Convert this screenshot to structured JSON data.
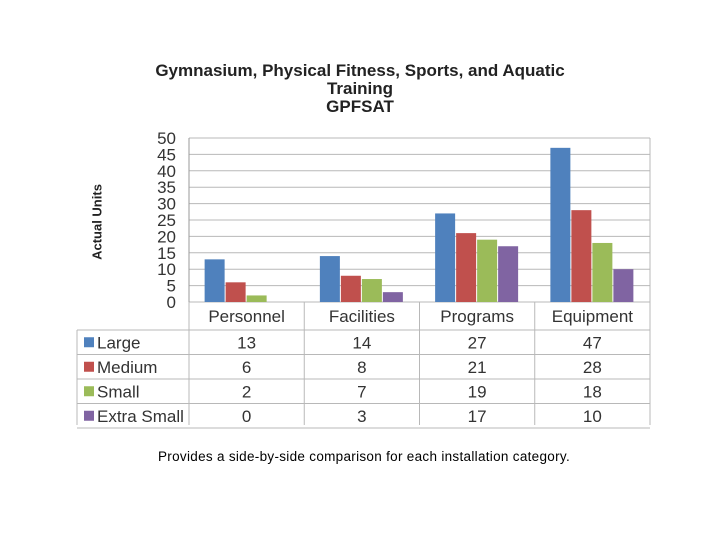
{
  "chart_data": {
    "type": "bar",
    "title_lines": [
      "Gymnasium, Physical Fitness, Sports, and Aquatic",
      "Training",
      "GPFSAT"
    ],
    "xlabel": "",
    "ylabel": "Actual Units",
    "ylim": [
      0,
      50
    ],
    "yticks": [
      "0",
      "5",
      "10",
      "15",
      "20",
      "25",
      "30",
      "35",
      "40",
      "45",
      "50"
    ],
    "categories": [
      "Personnel",
      "Facilities",
      "Programs",
      "Equipment"
    ],
    "series": [
      {
        "name": "Large",
        "color": "#4F81BD",
        "values": [
          13,
          14,
          27,
          47
        ]
      },
      {
        "name": "Medium",
        "color": "#C0504D",
        "values": [
          6,
          8,
          21,
          28
        ]
      },
      {
        "name": "Small",
        "color": "#9BBB59",
        "values": [
          2,
          7,
          19,
          18
        ]
      },
      {
        "name": "Extra Small",
        "color": "#8064A2",
        "values": [
          0,
          3,
          17,
          10
        ]
      }
    ],
    "grid": true,
    "legend": "data-table",
    "data_table": true
  },
  "caption": "Provides a side-by-side comparison for each installation category."
}
